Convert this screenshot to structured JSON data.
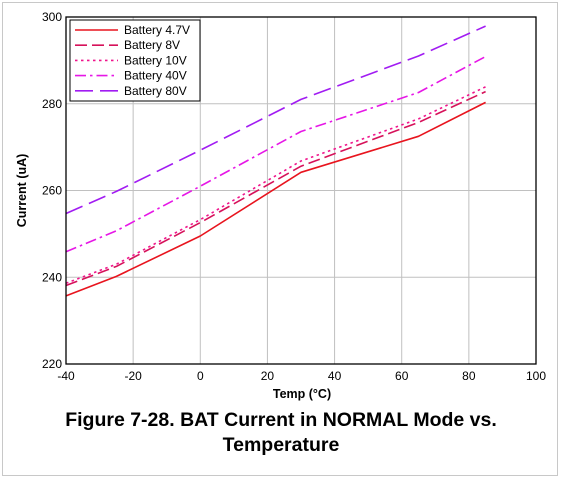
{
  "chart_data": {
    "type": "line",
    "xlabel": "Temp (°C)",
    "ylabel": "Current (uA)",
    "xlim": [
      -40,
      100
    ],
    "ylim": [
      220,
      300
    ],
    "xticks": [
      -40,
      -20,
      0,
      20,
      40,
      60,
      80,
      100
    ],
    "yticks": [
      220,
      240,
      260,
      280,
      300
    ],
    "grid": true,
    "legend_position": "top-left",
    "series": [
      {
        "name": "Battery 4.7V",
        "color": "#e8141e",
        "dash": "solid",
        "x": [
          -40,
          -25,
          0,
          30,
          65,
          85
        ],
        "y": [
          235.7,
          240.2,
          249.5,
          264.2,
          272.5,
          280.3
        ]
      },
      {
        "name": "Battery 8V",
        "color": "#d6125a",
        "dash": "dash",
        "x": [
          -40,
          -25,
          0,
          30,
          65,
          85
        ],
        "y": [
          238.1,
          242.5,
          252.6,
          265.6,
          275.7,
          282.8
        ]
      },
      {
        "name": "Battery 10V",
        "color": "#f0148c",
        "dash": "dot",
        "x": [
          -40,
          -25,
          0,
          30,
          65,
          85
        ],
        "y": [
          238.6,
          243.0,
          253.3,
          266.8,
          276.5,
          283.9
        ]
      },
      {
        "name": "Battery 40V",
        "color": "#e617e6",
        "dash": "dashdot",
        "x": [
          -40,
          -25,
          0,
          30,
          65,
          85
        ],
        "y": [
          245.9,
          250.7,
          261.0,
          273.6,
          282.6,
          290.9
        ]
      },
      {
        "name": "Battery 80V",
        "color": "#a11cf2",
        "dash": "longdash",
        "x": [
          -40,
          -25,
          0,
          30,
          65,
          85
        ],
        "y": [
          254.7,
          259.8,
          269.3,
          281.0,
          291.0,
          297.9
        ]
      }
    ]
  },
  "caption": {
    "line1": "Figure 7-28. BAT Current in NORMAL Mode vs.",
    "line2": "Temperature"
  }
}
